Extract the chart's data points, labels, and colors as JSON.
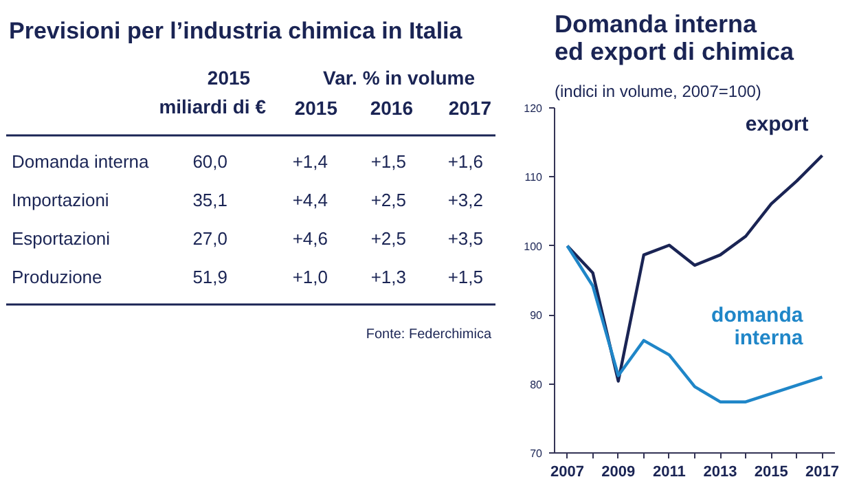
{
  "chart_data": [
    {
      "type": "other",
      "title": "Previsioni per l’industria chimica in Italia",
      "annotations": [
        "2015",
        "miliardi di €",
        "Var. % in volume",
        "2015",
        "2016",
        "2017",
        "Domanda interna",
        "60,0",
        "+1,4",
        "+1,5",
        "+1,6",
        "Importazioni",
        "35,1",
        "+4,4",
        "+2,5",
        "+3,2",
        "Esportazioni",
        "27,0",
        "+4,6",
        "+2,5",
        "+3,5",
        "Produzione",
        "51,9",
        "+1,0",
        "+1,3",
        "+1,5",
        "Fonte: Federchimica"
      ]
    },
    {
      "type": "line",
      "title": "Domanda interna\ned export di chimica",
      "subtitle": "(indici in volume, 2007=100)",
      "x": [
        2007,
        2008,
        2009,
        2010,
        2011,
        2012,
        2013,
        2014,
        2015,
        2016,
        2017
      ],
      "series": [
        {
          "name": "export",
          "color": "#1a2454",
          "values": [
            100,
            96.1,
            80.4,
            98.7,
            100.1,
            97.2,
            98.7,
            101.4,
            106.1,
            109.4,
            113.1
          ]
        },
        {
          "name": "domanda interna",
          "color": "#1f86c8",
          "values": [
            100,
            94.2,
            81.2,
            86.3,
            84.2,
            79.6,
            77.4,
            77.4,
            78.6,
            79.8,
            81.0
          ]
        }
      ],
      "xlim": [
        2006.5,
        2017.5
      ],
      "ylim": [
        70,
        120
      ],
      "xticks": [
        2007,
        {
          "value": 2008,
          "label": null
        },
        2009,
        {
          "value": 2010,
          "label": null
        },
        2011,
        {
          "value": 2012,
          "label": null
        },
        2013,
        {
          "value": 2014,
          "label": null
        },
        2015,
        {
          "value": 2016,
          "label": null
        },
        2017
      ],
      "yticks": [
        70,
        80,
        90,
        100,
        110,
        120
      ],
      "grid": false,
      "legend": false,
      "marker": "none",
      "line_style": "solid"
    }
  ]
}
